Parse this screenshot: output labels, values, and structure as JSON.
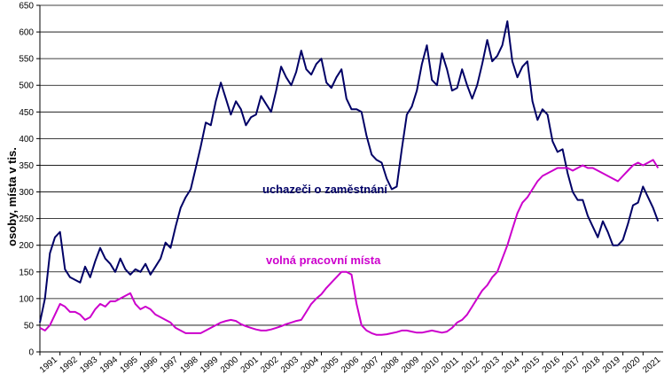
{
  "chart_data": {
    "type": "line",
    "title": "",
    "xlabel": "",
    "ylabel": "osoby, místa v tis.",
    "xlim": [
      1991,
      2022
    ],
    "ylim": [
      0,
      650
    ],
    "yticks": [
      0,
      50,
      100,
      150,
      200,
      250,
      300,
      350,
      400,
      450,
      500,
      550,
      600,
      650
    ],
    "xticks": [
      "1991",
      "1992",
      "1993",
      "1994",
      "1995",
      "1996",
      "1997",
      "1998",
      "1999",
      "2000",
      "2001",
      "2002",
      "2003",
      "2004",
      "2005",
      "2006",
      "2007",
      "2008",
      "2009",
      "2010",
      "2011",
      "2012",
      "2013",
      "2014",
      "2015",
      "2016",
      "2017",
      "2018",
      "2019",
      "2020",
      "2021"
    ],
    "grid": "horizontal",
    "series": [
      {
        "name": "uchazeči o zaměstnání",
        "color": "#000066",
        "points": [
          [
            1991.0,
            55
          ],
          [
            1991.25,
            100
          ],
          [
            1991.5,
            185
          ],
          [
            1991.75,
            215
          ],
          [
            1992.0,
            225
          ],
          [
            1992.25,
            155
          ],
          [
            1992.5,
            140
          ],
          [
            1992.75,
            135
          ],
          [
            1993.0,
            130
          ],
          [
            1993.25,
            160
          ],
          [
            1993.5,
            140
          ],
          [
            1993.75,
            170
          ],
          [
            1994.0,
            195
          ],
          [
            1994.25,
            175
          ],
          [
            1994.5,
            165
          ],
          [
            1994.75,
            150
          ],
          [
            1995.0,
            175
          ],
          [
            1995.25,
            155
          ],
          [
            1995.5,
            145
          ],
          [
            1995.75,
            155
          ],
          [
            1996.0,
            150
          ],
          [
            1996.25,
            165
          ],
          [
            1996.5,
            145
          ],
          [
            1996.75,
            160
          ],
          [
            1997.0,
            175
          ],
          [
            1997.25,
            205
          ],
          [
            1997.5,
            195
          ],
          [
            1997.75,
            235
          ],
          [
            1998.0,
            270
          ],
          [
            1998.25,
            290
          ],
          [
            1998.5,
            305
          ],
          [
            1998.75,
            345
          ],
          [
            1999.0,
            385
          ],
          [
            1999.25,
            430
          ],
          [
            1999.5,
            425
          ],
          [
            1999.75,
            470
          ],
          [
            2000.0,
            505
          ],
          [
            2000.25,
            475
          ],
          [
            2000.5,
            445
          ],
          [
            2000.75,
            470
          ],
          [
            2001.0,
            455
          ],
          [
            2001.25,
            425
          ],
          [
            2001.5,
            440
          ],
          [
            2001.75,
            445
          ],
          [
            2002.0,
            480
          ],
          [
            2002.25,
            465
          ],
          [
            2002.5,
            450
          ],
          [
            2002.75,
            490
          ],
          [
            2003.0,
            535
          ],
          [
            2003.25,
            515
          ],
          [
            2003.5,
            500
          ],
          [
            2003.75,
            525
          ],
          [
            2004.0,
            565
          ],
          [
            2004.25,
            530
          ],
          [
            2004.5,
            520
          ],
          [
            2004.75,
            540
          ],
          [
            2005.0,
            550
          ],
          [
            2005.25,
            505
          ],
          [
            2005.5,
            495
          ],
          [
            2005.75,
            515
          ],
          [
            2006.0,
            530
          ],
          [
            2006.25,
            475
          ],
          [
            2006.5,
            455
          ],
          [
            2006.75,
            455
          ],
          [
            2007.0,
            450
          ],
          [
            2007.25,
            405
          ],
          [
            2007.5,
            370
          ],
          [
            2007.75,
            360
          ],
          [
            2008.0,
            355
          ],
          [
            2008.25,
            325
          ],
          [
            2008.5,
            305
          ],
          [
            2008.75,
            310
          ],
          [
            2009.0,
            380
          ],
          [
            2009.25,
            445
          ],
          [
            2009.5,
            460
          ],
          [
            2009.75,
            490
          ],
          [
            2010.0,
            540
          ],
          [
            2010.25,
            575
          ],
          [
            2010.5,
            510
          ],
          [
            2010.75,
            500
          ],
          [
            2011.0,
            560
          ],
          [
            2011.25,
            530
          ],
          [
            2011.5,
            490
          ],
          [
            2011.75,
            495
          ],
          [
            2012.0,
            530
          ],
          [
            2012.25,
            500
          ],
          [
            2012.5,
            475
          ],
          [
            2012.75,
            500
          ],
          [
            2013.0,
            540
          ],
          [
            2013.25,
            585
          ],
          [
            2013.5,
            545
          ],
          [
            2013.75,
            555
          ],
          [
            2014.0,
            575
          ],
          [
            2014.25,
            620
          ],
          [
            2014.5,
            545
          ],
          [
            2014.75,
            515
          ],
          [
            2015.0,
            535
          ],
          [
            2015.25,
            545
          ],
          [
            2015.5,
            470
          ],
          [
            2015.75,
            435
          ],
          [
            2016.0,
            455
          ],
          [
            2016.25,
            445
          ],
          [
            2016.5,
            395
          ],
          [
            2016.75,
            375
          ],
          [
            2017.0,
            380
          ],
          [
            2017.25,
            335
          ],
          [
            2017.5,
            300
          ],
          [
            2017.75,
            285
          ],
          [
            2018.0,
            285
          ],
          [
            2018.25,
            255
          ],
          [
            2018.5,
            235
          ],
          [
            2018.75,
            215
          ],
          [
            2019.0,
            245
          ],
          [
            2019.25,
            225
          ],
          [
            2019.5,
            200
          ],
          [
            2019.75,
            200
          ],
          [
            2020.0,
            210
          ],
          [
            2020.25,
            240
          ],
          [
            2020.5,
            275
          ],
          [
            2020.75,
            280
          ],
          [
            2021.0,
            310
          ],
          [
            2021.25,
            290
          ],
          [
            2021.5,
            270
          ],
          [
            2021.75,
            245
          ]
        ]
      },
      {
        "name": "volná pracovní místa",
        "color": "#cc00cc",
        "points": [
          [
            1991.0,
            45
          ],
          [
            1991.25,
            40
          ],
          [
            1991.5,
            50
          ],
          [
            1991.75,
            70
          ],
          [
            1992.0,
            90
          ],
          [
            1992.25,
            85
          ],
          [
            1992.5,
            75
          ],
          [
            1992.75,
            75
          ],
          [
            1993.0,
            70
          ],
          [
            1993.25,
            60
          ],
          [
            1993.5,
            65
          ],
          [
            1993.75,
            80
          ],
          [
            1994.0,
            90
          ],
          [
            1994.25,
            85
          ],
          [
            1994.5,
            95
          ],
          [
            1994.75,
            95
          ],
          [
            1995.0,
            100
          ],
          [
            1995.25,
            105
          ],
          [
            1995.5,
            110
          ],
          [
            1995.75,
            90
          ],
          [
            1996.0,
            80
          ],
          [
            1996.25,
            85
          ],
          [
            1996.5,
            80
          ],
          [
            1996.75,
            70
          ],
          [
            1997.0,
            65
          ],
          [
            1997.25,
            60
          ],
          [
            1997.5,
            55
          ],
          [
            1997.75,
            45
          ],
          [
            1998.0,
            40
          ],
          [
            1998.25,
            35
          ],
          [
            1998.5,
            35
          ],
          [
            1998.75,
            35
          ],
          [
            1999.0,
            35
          ],
          [
            1999.25,
            40
          ],
          [
            1999.5,
            45
          ],
          [
            1999.75,
            50
          ],
          [
            2000.0,
            55
          ],
          [
            2000.25,
            58
          ],
          [
            2000.5,
            60
          ],
          [
            2000.75,
            58
          ],
          [
            2001.0,
            52
          ],
          [
            2001.25,
            48
          ],
          [
            2001.5,
            45
          ],
          [
            2001.75,
            42
          ],
          [
            2002.0,
            40
          ],
          [
            2002.25,
            40
          ],
          [
            2002.5,
            42
          ],
          [
            2002.75,
            45
          ],
          [
            2003.0,
            48
          ],
          [
            2003.25,
            52
          ],
          [
            2003.5,
            55
          ],
          [
            2003.75,
            58
          ],
          [
            2004.0,
            60
          ],
          [
            2004.25,
            75
          ],
          [
            2004.5,
            90
          ],
          [
            2004.75,
            100
          ],
          [
            2005.0,
            108
          ],
          [
            2005.25,
            120
          ],
          [
            2005.5,
            130
          ],
          [
            2005.75,
            140
          ],
          [
            2006.0,
            150
          ],
          [
            2006.25,
            150
          ],
          [
            2006.5,
            145
          ],
          [
            2006.75,
            90
          ],
          [
            2007.0,
            50
          ],
          [
            2007.25,
            40
          ],
          [
            2007.5,
            35
          ],
          [
            2007.75,
            32
          ],
          [
            2008.0,
            32
          ],
          [
            2008.25,
            33
          ],
          [
            2008.5,
            35
          ],
          [
            2008.75,
            37
          ],
          [
            2009.0,
            40
          ],
          [
            2009.25,
            40
          ],
          [
            2009.5,
            38
          ],
          [
            2009.75,
            36
          ],
          [
            2010.0,
            36
          ],
          [
            2010.25,
            38
          ],
          [
            2010.5,
            40
          ],
          [
            2010.75,
            38
          ],
          [
            2011.0,
            36
          ],
          [
            2011.25,
            38
          ],
          [
            2011.5,
            45
          ],
          [
            2011.75,
            55
          ],
          [
            2012.0,
            60
          ],
          [
            2012.25,
            70
          ],
          [
            2012.5,
            85
          ],
          [
            2012.75,
            100
          ],
          [
            2013.0,
            115
          ],
          [
            2013.25,
            125
          ],
          [
            2013.5,
            140
          ],
          [
            2013.75,
            150
          ],
          [
            2014.0,
            175
          ],
          [
            2014.25,
            200
          ],
          [
            2014.5,
            230
          ],
          [
            2014.75,
            260
          ],
          [
            2015.0,
            280
          ],
          [
            2015.25,
            290
          ],
          [
            2015.5,
            305
          ],
          [
            2015.75,
            320
          ],
          [
            2016.0,
            330
          ],
          [
            2016.25,
            335
          ],
          [
            2016.5,
            340
          ],
          [
            2016.75,
            345
          ],
          [
            2017.0,
            345
          ],
          [
            2017.25,
            345
          ],
          [
            2017.5,
            340
          ],
          [
            2017.75,
            345
          ],
          [
            2018.0,
            350
          ],
          [
            2018.25,
            345
          ],
          [
            2018.5,
            345
          ],
          [
            2018.75,
            340
          ],
          [
            2019.0,
            335
          ],
          [
            2019.25,
            330
          ],
          [
            2019.5,
            325
          ],
          [
            2019.75,
            320
          ],
          [
            2020.0,
            330
          ],
          [
            2020.25,
            340
          ],
          [
            2020.5,
            350
          ],
          [
            2020.75,
            355
          ],
          [
            2021.0,
            350
          ],
          [
            2021.25,
            355
          ],
          [
            2021.5,
            360
          ],
          [
            2021.75,
            345
          ]
        ]
      }
    ],
    "annotations": [
      {
        "text": "uchazeči o zaměstnání",
        "color": "#000066"
      },
      {
        "text": "volná pracovní místa",
        "color": "#cc00cc"
      }
    ]
  }
}
